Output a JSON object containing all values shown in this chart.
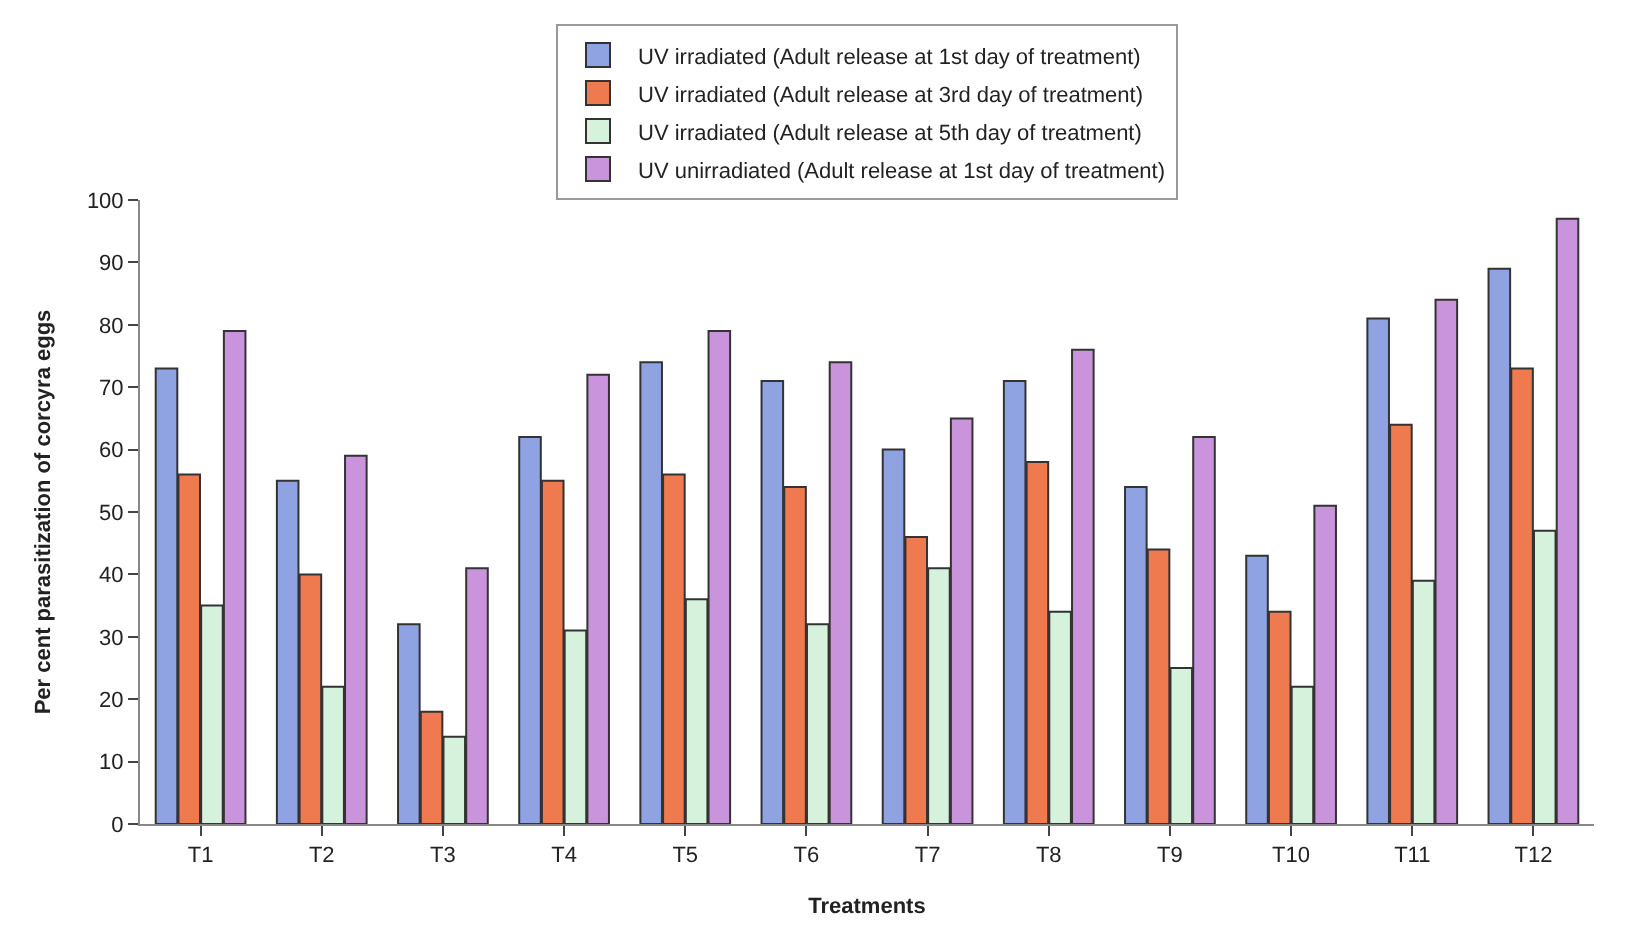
{
  "chart_data": {
    "type": "bar",
    "xlabel": "Treatments",
    "ylabel": "Per cent parasitization of corcyra eggs",
    "categories": [
      "T1",
      "T2",
      "T3",
      "T4",
      "T5",
      "T6",
      "T7",
      "T8",
      "T9",
      "T10",
      "T11",
      "T12"
    ],
    "series": [
      {
        "name": "UV irradiated (Adult release at 1st day of treatment)",
        "color": "#8fa3e3",
        "values": [
          73,
          55,
          32,
          62,
          74,
          71,
          60,
          71,
          54,
          43,
          81,
          89
        ]
      },
      {
        "name": "UV irradiated (Adult release at 3rd day of treatment)",
        "color": "#f07a50",
        "values": [
          56,
          40,
          18,
          55,
          56,
          54,
          46,
          58,
          44,
          34,
          64,
          73
        ]
      },
      {
        "name": "UV irradiated (Adult release at 5th day of treatment)",
        "color": "#d6f2dc",
        "values": [
          35,
          22,
          14,
          31,
          36,
          32,
          41,
          34,
          25,
          22,
          39,
          47
        ]
      },
      {
        "name": "UV unirradiated (Adult release at 1st day of treatment)",
        "color": "#c994dc",
        "values": [
          79,
          59,
          41,
          72,
          79,
          74,
          65,
          76,
          62,
          51,
          84,
          97
        ]
      }
    ],
    "ylim": [
      0,
      100
    ],
    "yticks": [
      0,
      10,
      20,
      30,
      40,
      50,
      60,
      70,
      80,
      90,
      100
    ],
    "legend": "top"
  }
}
